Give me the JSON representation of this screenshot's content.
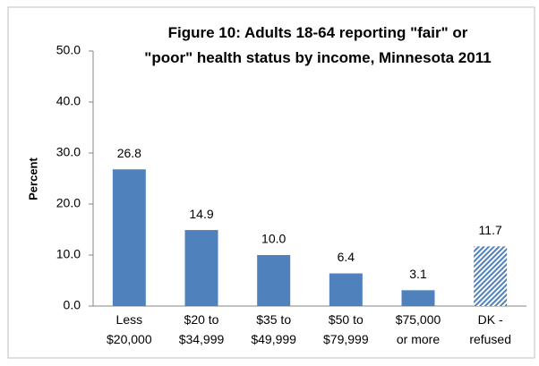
{
  "chart_data": {
    "type": "bar",
    "title": "Figure 10:  Adults 18-64 reporting \"fair\" or\n\"poor\" health status by income, Minnesota 2011",
    "ylabel": "Percent",
    "categories": [
      "Less\n$20,000",
      "$20 to\n$34,999",
      "$35 to\n$49,999",
      "$50 to\n$79,999",
      "$75,000\nor more",
      "DK -\nrefused"
    ],
    "values": [
      26.8,
      14.9,
      10.0,
      6.4,
      3.1,
      11.7
    ],
    "value_labels": [
      "26.8",
      "14.9",
      "10.0",
      "6.4",
      "3.1",
      "11.7"
    ],
    "color": "#4f81bd",
    "hatched": [
      false,
      false,
      false,
      false,
      false,
      true
    ],
    "ylim": [
      0,
      50
    ],
    "yticks": [
      {
        "value": 0,
        "label": "0.0"
      },
      {
        "value": 10,
        "label": "10.0"
      },
      {
        "value": 20,
        "label": "20.0"
      },
      {
        "value": 30,
        "label": "30.0"
      },
      {
        "value": 40,
        "label": "40.0"
      },
      {
        "value": 50,
        "label": "50.0"
      }
    ],
    "grid": false
  }
}
